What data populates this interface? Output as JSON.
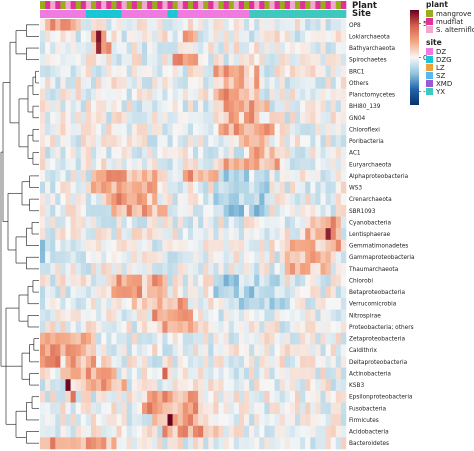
{
  "chart_data": {
    "type": "heatmap",
    "title": "",
    "xlabel": "",
    "ylabel": "",
    "annotation_rows": [
      "Plant",
      "Site"
    ],
    "rows": [
      "OP8",
      "Lokiarchaeota",
      "Bathyarchaeota",
      "Spirochaetes",
      "BRC1",
      "Others",
      "Planctomycetes",
      "BHI80_139",
      "GN04",
      "Chloroflexi",
      "Poribacteria",
      "AC1",
      "Euryarchaeota",
      "Alphaproteobacteria",
      "WS3",
      "Crenarchaeota",
      "SBR1093",
      "Cyanobacteria",
      "Lentisphaerae",
      "Gemmatimonadetes",
      "Gammaproteobacteria",
      "Thaumarchaeota",
      "Chlorobi",
      "Betaproteobacteria",
      "Verrucomicrobia",
      "Nitrospirae",
      "Proteobacteria; others",
      "Zetaproteobacteria",
      "Caldithrix",
      "Deltaproteobacteria",
      "Actinobacteria",
      "KSB3",
      "Epsilonproteobacteria",
      "Fusobacteria",
      "Firmicutes",
      "Acidobacteria",
      "Bacteroidetes"
    ],
    "n_columns": 60,
    "color_scale": {
      "ticks": [
        5,
        0,
        -5
      ],
      "range": [
        -7,
        7
      ],
      "colors": [
        "#08306b",
        "#2166ac",
        "#92c5de",
        "#f7f7f7",
        "#f4a582",
        "#d6604d",
        "#67001f"
      ]
    },
    "legends": [
      {
        "title": "plant",
        "entries": [
          {
            "label": "mangrove",
            "color": "#9aac1c"
          },
          {
            "label": "mudflat",
            "color": "#e0309a"
          },
          {
            "label": "S. alterniflora",
            "color": "#f3a6cf"
          }
        ]
      },
      {
        "title": "site",
        "entries": [
          {
            "label": "DZ",
            "color": "#f07be0"
          },
          {
            "label": "DZG",
            "color": "#19c7d4"
          },
          {
            "label": "LZ",
            "color": "#f0a23a"
          },
          {
            "label": "SZ",
            "color": "#58b8f0"
          },
          {
            "label": "XMD",
            "color": "#9c59d0"
          },
          {
            "label": "YX",
            "color": "#3ec9c0"
          }
        ]
      }
    ],
    "plant_annotation": [
      "mangrove",
      "mudflat",
      "S. alterniflora",
      "mudflat",
      "mangrove",
      "S. alterniflora",
      "mudflat",
      "mangrove",
      "mudflat",
      "S. alterniflora",
      "mangrove",
      "mudflat",
      "S. alterniflora",
      "mudflat",
      "mangrove",
      "mudflat",
      "S. alterniflora",
      "mangrove",
      "mudflat",
      "mangrove",
      "S. alterniflora",
      "mudflat",
      "mangrove",
      "mudflat",
      "S. alterniflora",
      "mudflat",
      "mangrove",
      "S. alterniflora",
      "mudflat",
      "mangrove",
      "mudflat",
      "S. alterniflora",
      "mangrove",
      "mudflat",
      "S. alterniflora",
      "mangrove",
      "mudflat",
      "mangrove",
      "S. alterniflora",
      "mudflat",
      "mangrove",
      "mudflat",
      "S. alterniflora",
      "mudflat",
      "mangrove",
      "S. alterniflora",
      "mudflat",
      "mangrove",
      "mudflat",
      "S. alterniflora",
      "mangrove",
      "mudflat",
      "mangrove",
      "S. alterniflora",
      "mudflat",
      "mangrove",
      "mudflat",
      "S. alterniflora",
      "mangrove",
      "mudflat"
    ],
    "site_annotation": [
      "DZ",
      "DZ",
      "DZ",
      "DZ",
      "DZ",
      "DZ",
      "DZ",
      "DZ",
      "DZ",
      "DZG",
      "DZG",
      "DZG",
      "DZG",
      "DZG",
      "DZG",
      "DZG",
      "DZ",
      "DZ",
      "DZ",
      "DZ",
      "DZ",
      "DZ",
      "DZ",
      "DZ",
      "DZ",
      "DZG",
      "DZG",
      "DZ",
      "DZ",
      "DZ",
      "DZ",
      "DZ",
      "DZ",
      "DZ",
      "DZ",
      "DZ",
      "DZ",
      "DZ",
      "DZ",
      "DZ",
      "DZ",
      "YX",
      "YX",
      "YX",
      "YX",
      "YX",
      "YX",
      "YX",
      "YX",
      "YX",
      "YX",
      "YX",
      "YX",
      "YX",
      "YX",
      "YX",
      "YX",
      "YX",
      "YX",
      "YX"
    ],
    "values": []
  }
}
